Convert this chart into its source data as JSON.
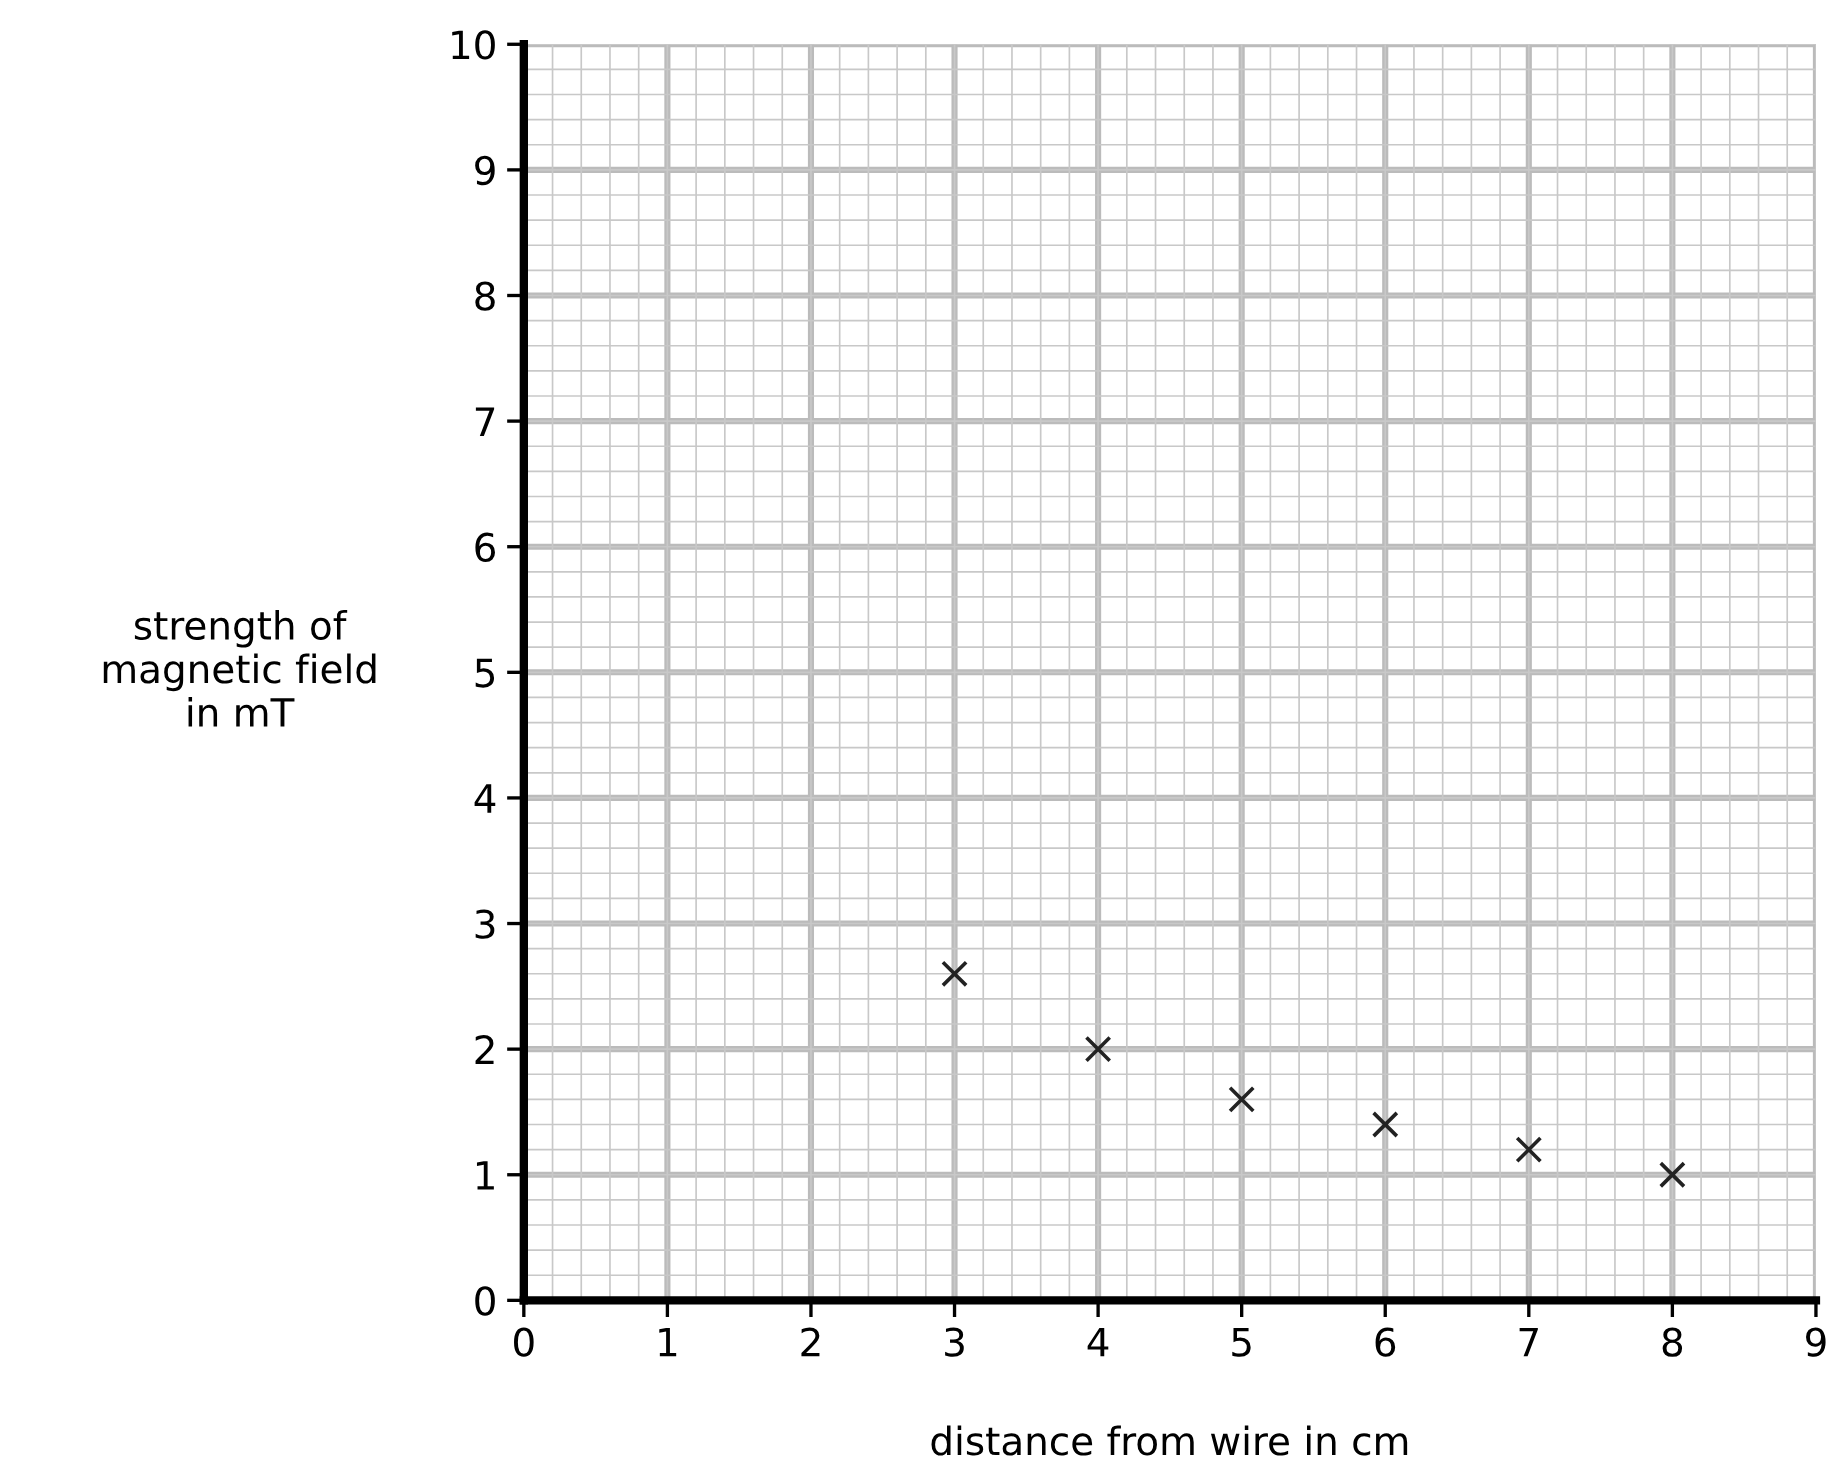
{
  "chart_data": {
    "type": "scatter",
    "xlabel": "distance from wire in cm",
    "ylabel": "strength of\nmagnetic field\nin mT",
    "x": [
      3,
      4,
      5,
      6,
      7,
      8
    ],
    "series": [
      {
        "color": "#222222",
        "values": [
          2.6,
          2.0,
          1.6,
          1.4,
          1.2,
          1.0
        ]
      }
    ],
    "marker": "cross",
    "xlim": [
      0,
      9
    ],
    "ylim": [
      0,
      10
    ],
    "xticks": [
      0,
      1,
      2,
      3,
      4,
      5,
      6,
      7,
      8,
      9
    ],
    "yticks": [
      0,
      1,
      2,
      3,
      4,
      5,
      6,
      7,
      8,
      9,
      10
    ],
    "grid": true
  }
}
